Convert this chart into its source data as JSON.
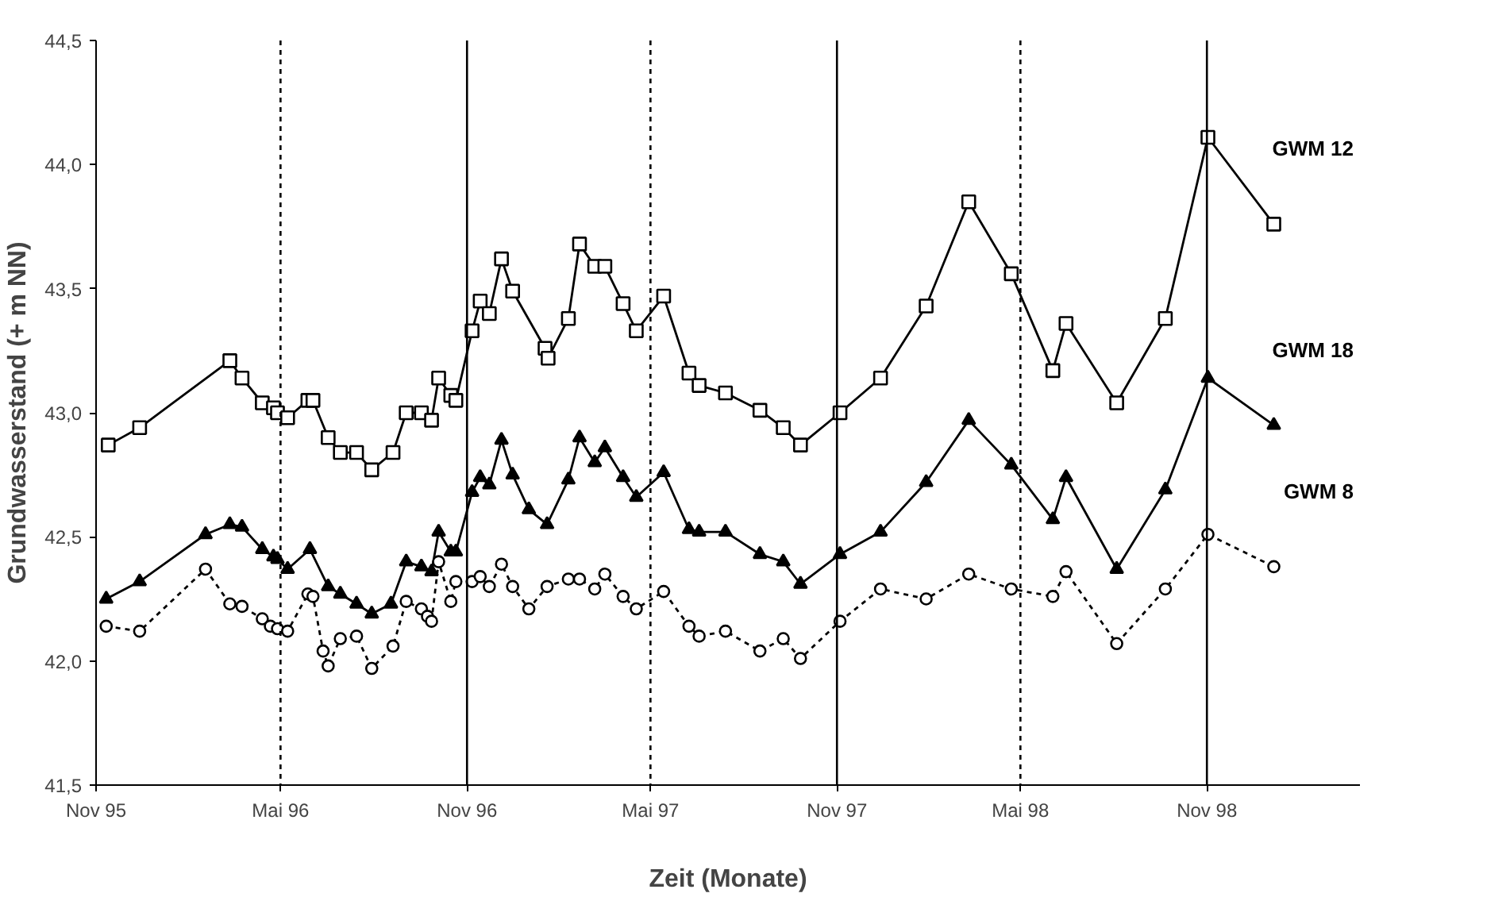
{
  "chart_data": {
    "type": "line",
    "xlabel": "Zeit (Monate)",
    "ylabel": "Grundwasserstand (+ m NN)",
    "xlim": [
      "1995-11-01",
      "1999-04-01"
    ],
    "xticks": [
      {
        "value": "1995-11-01",
        "label": "Nov 95"
      },
      {
        "value": "1996-05-01",
        "label": "Mai 96"
      },
      {
        "value": "1996-11-01",
        "label": "Nov 96"
      },
      {
        "value": "1997-05-01",
        "label": "Mai 97"
      },
      {
        "value": "1997-11-01",
        "label": "Nov 97"
      },
      {
        "value": "1998-05-01",
        "label": "Mai 98"
      },
      {
        "value": "1998-11-01",
        "label": "Nov 98"
      }
    ],
    "ylim": [
      41.5,
      44.5
    ],
    "yticks": [
      {
        "value": 41.5,
        "label": "41,5"
      },
      {
        "value": 42.0,
        "label": "42,0"
      },
      {
        "value": 42.5,
        "label": "42,5"
      },
      {
        "value": 43.0,
        "label": "43,0"
      },
      {
        "value": 43.5,
        "label": "43,5"
      },
      {
        "value": 44.0,
        "label": "44,0"
      },
      {
        "value": 44.5,
        "label": "44,5"
      }
    ],
    "grid": false,
    "legend": false,
    "ref_lines": [
      {
        "axis": "x",
        "value": "1996-05-01",
        "line_style": "dotted",
        "color": "#000000"
      },
      {
        "axis": "x",
        "value": "1997-05-01",
        "line_style": "dotted",
        "color": "#000000"
      },
      {
        "axis": "x",
        "value": "1998-05-01",
        "line_style": "dotted",
        "color": "#000000"
      },
      {
        "axis": "x",
        "value": "1996-11-01",
        "line_style": "solid",
        "color": "#000000"
      },
      {
        "axis": "x",
        "value": "1997-11-01",
        "line_style": "solid",
        "color": "#000000"
      },
      {
        "axis": "x",
        "value": "1998-11-01",
        "line_style": "solid",
        "color": "#000000"
      }
    ],
    "series": [
      {
        "name": "GWM 12",
        "color": "#000000",
        "marker": "square",
        "line_style": "solid",
        "x": [
          "1995-11-13",
          "1995-12-14",
          "1996-03-12",
          "1996-03-24",
          "1996-04-13",
          "1996-04-24",
          "1996-04-28",
          "1996-05-08",
          "1996-05-28",
          "1996-06-02",
          "1996-06-17",
          "1996-06-29",
          "1996-07-15",
          "1996-07-30",
          "1996-08-20",
          "1996-09-02",
          "1996-09-17",
          "1996-09-27",
          "1996-10-04",
          "1996-10-16",
          "1996-10-21",
          "1996-11-06",
          "1996-11-14",
          "1996-11-23",
          "1996-12-05",
          "1996-12-16",
          "1997-01-17",
          "1997-01-20",
          "1997-02-09",
          "1997-02-20",
          "1997-03-07",
          "1997-03-17",
          "1997-04-04",
          "1997-04-17",
          "1997-05-14",
          "1997-06-08",
          "1997-06-18",
          "1997-07-14",
          "1997-08-17",
          "1997-09-09",
          "1997-09-26",
          "1997-11-04",
          "1997-12-14",
          "1998-01-28",
          "1998-03-11",
          "1998-04-22",
          "1998-06-02",
          "1998-06-15",
          "1998-08-04",
          "1998-09-21",
          "1998-11-02",
          "1999-01-06"
        ],
        "values": [
          42.87,
          42.94,
          43.21,
          43.14,
          43.04,
          43.02,
          43.0,
          42.98,
          43.05,
          43.05,
          42.9,
          42.84,
          42.84,
          42.77,
          42.84,
          43.0,
          43.0,
          42.97,
          43.14,
          43.07,
          43.05,
          43.33,
          43.45,
          43.4,
          43.62,
          43.49,
          43.26,
          43.22,
          43.38,
          43.68,
          43.59,
          43.59,
          43.44,
          43.33,
          43.47,
          43.16,
          43.11,
          43.08,
          43.01,
          42.94,
          42.87,
          43.0,
          43.14,
          43.43,
          43.85,
          43.56,
          43.17,
          43.36,
          43.04,
          43.38,
          44.11,
          43.76
        ]
      },
      {
        "name": "GWM 18",
        "color": "#000000",
        "marker": "triangle",
        "line_style": "solid",
        "x": [
          "1995-11-11",
          "1995-12-14",
          "1996-02-17",
          "1996-03-12",
          "1996-03-24",
          "1996-04-13",
          "1996-04-24",
          "1996-04-28",
          "1996-05-08",
          "1996-05-30",
          "1996-06-17",
          "1996-06-29",
          "1996-07-15",
          "1996-07-30",
          "1996-08-18",
          "1996-09-02",
          "1996-09-17",
          "1996-09-27",
          "1996-10-04",
          "1996-10-16",
          "1996-10-21",
          "1996-11-06",
          "1996-11-14",
          "1996-11-23",
          "1996-12-05",
          "1996-12-16",
          "1997-01-01",
          "1997-01-19",
          "1997-02-09",
          "1997-02-20",
          "1997-03-07",
          "1997-03-17",
          "1997-04-04",
          "1997-04-17",
          "1997-05-14",
          "1997-06-08",
          "1997-06-18",
          "1997-07-14",
          "1997-08-17",
          "1997-09-09",
          "1997-09-26",
          "1997-11-04",
          "1997-12-14",
          "1998-01-28",
          "1998-03-11",
          "1998-04-22",
          "1998-06-02",
          "1998-06-15",
          "1998-08-04",
          "1998-09-21",
          "1998-11-02",
          "1999-01-06"
        ],
        "values": [
          42.25,
          42.32,
          42.51,
          42.55,
          42.54,
          42.45,
          42.42,
          42.41,
          42.37,
          42.45,
          42.3,
          42.27,
          42.23,
          42.19,
          42.23,
          42.4,
          42.38,
          42.36,
          42.52,
          42.44,
          42.44,
          42.68,
          42.74,
          42.71,
          42.89,
          42.75,
          42.61,
          42.55,
          42.73,
          42.9,
          42.8,
          42.86,
          42.74,
          42.66,
          42.76,
          42.53,
          42.52,
          42.52,
          42.43,
          42.4,
          42.31,
          42.43,
          42.52,
          42.72,
          42.97,
          42.79,
          42.57,
          42.74,
          42.37,
          42.69,
          43.14,
          42.95
        ]
      },
      {
        "name": "GWM 8",
        "color": "#000000",
        "marker": "circle",
        "line_style": "dotted",
        "x": [
          "1995-11-11",
          "1995-12-14",
          "1996-02-17",
          "1996-03-12",
          "1996-03-24",
          "1996-04-13",
          "1996-04-21",
          "1996-04-28",
          "1996-05-08",
          "1996-05-28",
          "1996-06-02",
          "1996-06-12",
          "1996-06-17",
          "1996-06-29",
          "1996-07-15",
          "1996-07-30",
          "1996-08-20",
          "1996-09-02",
          "1996-09-17",
          "1996-09-23",
          "1996-09-27",
          "1996-10-04",
          "1996-10-16",
          "1996-10-21",
          "1996-11-06",
          "1996-11-14",
          "1996-11-23",
          "1996-12-05",
          "1996-12-16",
          "1997-01-01",
          "1997-01-19",
          "1997-02-09",
          "1997-02-20",
          "1997-03-07",
          "1997-03-17",
          "1997-04-04",
          "1997-04-17",
          "1997-05-14",
          "1997-06-08",
          "1997-06-18",
          "1997-07-14",
          "1997-08-17",
          "1997-09-09",
          "1997-09-26",
          "1997-11-04",
          "1997-12-14",
          "1998-01-28",
          "1998-03-11",
          "1998-04-22",
          "1998-06-02",
          "1998-06-15",
          "1998-08-04",
          "1998-09-21",
          "1998-11-02",
          "1999-01-06"
        ],
        "values": [
          42.14,
          42.12,
          42.37,
          42.23,
          42.22,
          42.17,
          42.14,
          42.13,
          42.12,
          42.27,
          42.26,
          42.04,
          41.98,
          42.09,
          42.1,
          41.97,
          42.06,
          42.24,
          42.21,
          42.18,
          42.16,
          42.4,
          42.24,
          42.32,
          42.32,
          42.34,
          42.3,
          42.39,
          42.3,
          42.21,
          42.3,
          42.33,
          42.33,
          42.29,
          42.35,
          42.26,
          42.21,
          42.28,
          42.14,
          42.1,
          42.12,
          42.04,
          42.09,
          42.01,
          42.16,
          42.29,
          42.25,
          42.35,
          42.29,
          42.26,
          42.36,
          42.07,
          42.29,
          42.51,
          42.38
        ]
      }
    ]
  }
}
